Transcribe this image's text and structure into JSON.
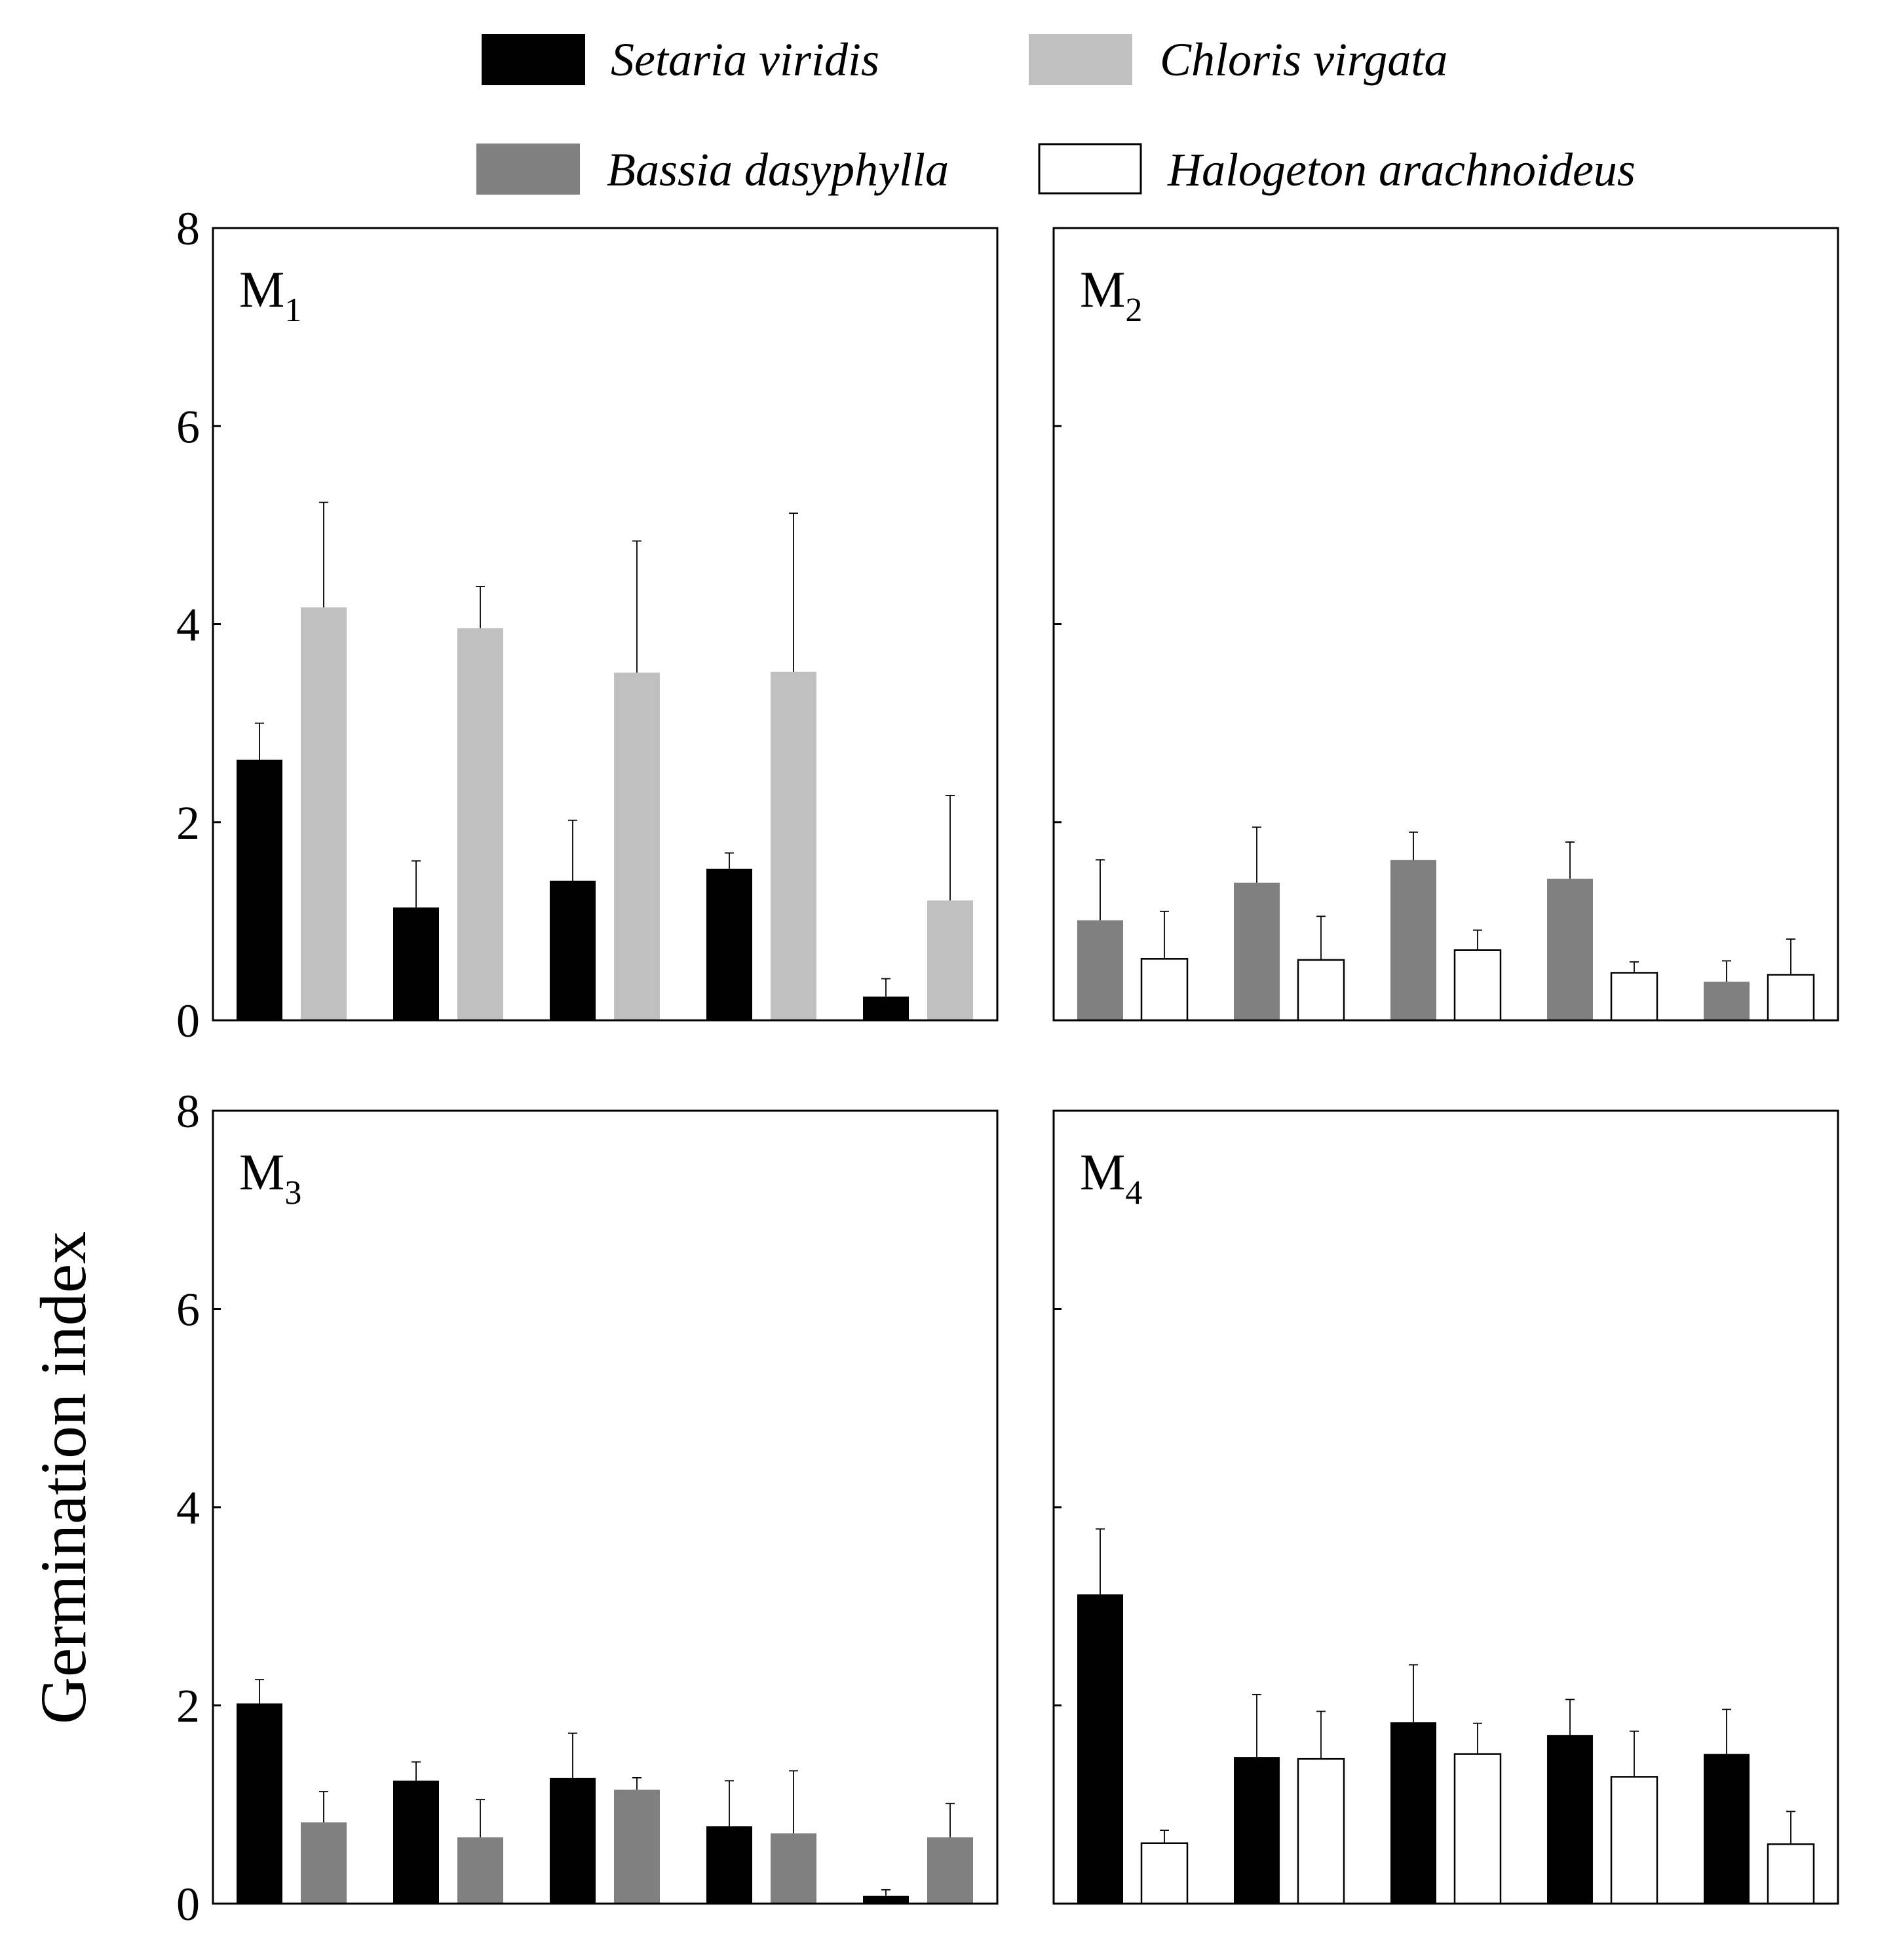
{
  "chart_data": {
    "type": "bar",
    "title": "",
    "xlabel": "",
    "ylabel": "Germination index",
    "ylim": [
      0,
      8
    ],
    "yticks": [
      "0",
      "2",
      "4",
      "6",
      "8"
    ],
    "legend": [
      {
        "name": "Setaria viridis",
        "color": "#000000"
      },
      {
        "name": "Chloris virgata",
        "color": "#c0c0c0"
      },
      {
        "name": "Bassia dasyphylla",
        "color": "#808080"
      },
      {
        "name": "Halogeton arachnoideus",
        "color": "#ffffff"
      }
    ],
    "panels": [
      {
        "label": "M",
        "sub": "1",
        "series": [
          {
            "name": "Setaria viridis",
            "color": "#000000",
            "values": [
              2.63,
              1.14,
              1.41,
              1.53,
              0.24
            ],
            "errors": [
              0.37,
              0.47,
              0.61,
              0.16,
              0.18
            ]
          },
          {
            "name": "Chloris virgata",
            "color": "#c0c0c0",
            "values": [
              4.17,
              3.96,
              3.51,
              3.52,
              1.21
            ],
            "errors": [
              1.06,
              0.42,
              1.33,
              1.6,
              1.06
            ]
          }
        ]
      },
      {
        "label": "M",
        "sub": "2",
        "series": [
          {
            "name": "Bassia dasyphylla",
            "color": "#808080",
            "values": [
              1.01,
              1.39,
              1.62,
              1.43,
              0.39
            ],
            "errors": [
              0.61,
              0.56,
              0.28,
              0.37,
              0.21
            ]
          },
          {
            "name": "Halogeton arachnoideus",
            "color": "#ffffff",
            "values": [
              0.62,
              0.61,
              0.71,
              0.48,
              0.46
            ],
            "errors": [
              0.48,
              0.44,
              0.2,
              0.11,
              0.36
            ]
          }
        ]
      },
      {
        "label": "M",
        "sub": "3",
        "series": [
          {
            "name": "Setaria viridis",
            "color": "#000000",
            "values": [
              2.02,
              1.24,
              1.27,
              0.78,
              0.08
            ],
            "errors": [
              0.24,
              0.19,
              0.45,
              0.46,
              0.06
            ]
          },
          {
            "name": "Bassia dasyphylla",
            "color": "#808080",
            "values": [
              0.82,
              0.67,
              1.15,
              0.71,
              0.67
            ],
            "errors": [
              0.31,
              0.38,
              0.12,
              0.63,
              0.34
            ]
          }
        ]
      },
      {
        "label": "M",
        "sub": "4",
        "series": [
          {
            "name": "Setaria viridis",
            "color": "#000000",
            "values": [
              3.12,
              1.48,
              1.83,
              1.7,
              1.51
            ],
            "errors": [
              0.66,
              0.63,
              0.58,
              0.36,
              0.45
            ]
          },
          {
            "name": "Halogeton arachnoideus",
            "color": "#ffffff",
            "values": [
              0.61,
              1.46,
              1.51,
              1.28,
              0.6
            ],
            "errors": [
              0.13,
              0.48,
              0.31,
              0.46,
              0.33
            ]
          }
        ]
      }
    ]
  }
}
